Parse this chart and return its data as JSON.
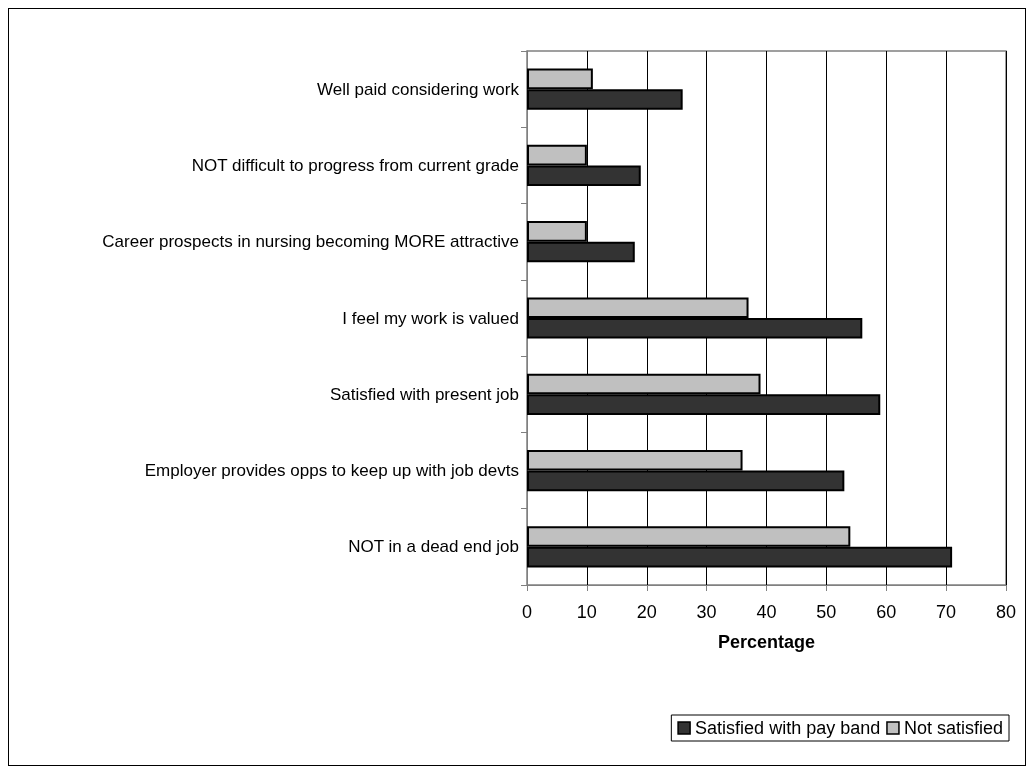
{
  "chart_data": {
    "type": "bar",
    "orientation": "horizontal",
    "xlabel": "Percentage",
    "categories": [
      "Well paid considering work",
      "NOT difficult to progress from current grade",
      "Career prospects in nursing becoming MORE attractive",
      "I feel my work is valued",
      "Satisfied with present job",
      "Employer provides opps to keep up with job devts",
      "NOT in a dead end job"
    ],
    "series": [
      {
        "name": "Satisfied with pay band",
        "color": "#333333",
        "values": [
          26,
          19,
          18,
          56,
          59,
          53,
          71
        ]
      },
      {
        "name": "Not satisfied",
        "color": "#c0c0c0",
        "values": [
          11,
          10,
          10,
          37,
          39,
          36,
          54
        ]
      }
    ],
    "xlim": [
      0,
      80
    ],
    "xticks": [
      0,
      10,
      20,
      30,
      40,
      50,
      60,
      70,
      80
    ],
    "grid": "x",
    "legend": "bottom right"
  }
}
